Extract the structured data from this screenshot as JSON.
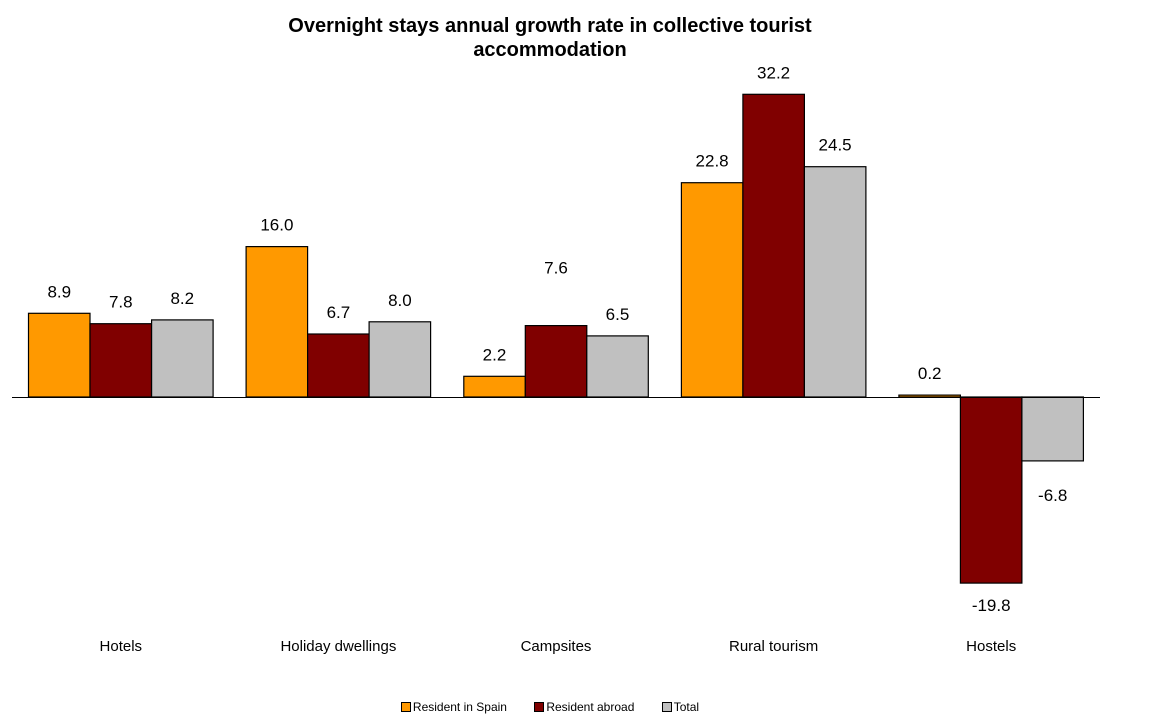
{
  "chart_data": {
    "type": "bar",
    "title_lines": [
      "Overnight stays annual growth rate in collective tourist",
      "accommodation"
    ],
    "categories": [
      "Hotels",
      "Holiday dwellings",
      "Campsites",
      "Rural tourism",
      "Hostels"
    ],
    "series": [
      {
        "name": "Resident in Spain",
        "color": "#FF9900",
        "values": [
          8.9,
          16.0,
          2.2,
          22.8,
          0.2
        ],
        "labels": [
          "8.9",
          "16.0",
          "2.2",
          "22.8",
          "0.2"
        ]
      },
      {
        "name": "Resident abroad",
        "color": "#800000",
        "values": [
          7.8,
          6.7,
          7.6,
          32.2,
          -19.8
        ],
        "labels": [
          "7.8",
          "6.7",
          "7.6",
          "32.2",
          "-19.8"
        ]
      },
      {
        "name": "Total",
        "color": "#C0C0C0",
        "values": [
          8.2,
          8.0,
          6.5,
          24.5,
          -6.8
        ],
        "labels": [
          "8.2",
          "8.0",
          "6.5",
          "24.5",
          "-6.8"
        ]
      }
    ],
    "ylim": [
      -21,
      33
    ],
    "grid": false,
    "legend_position": "bottom"
  }
}
